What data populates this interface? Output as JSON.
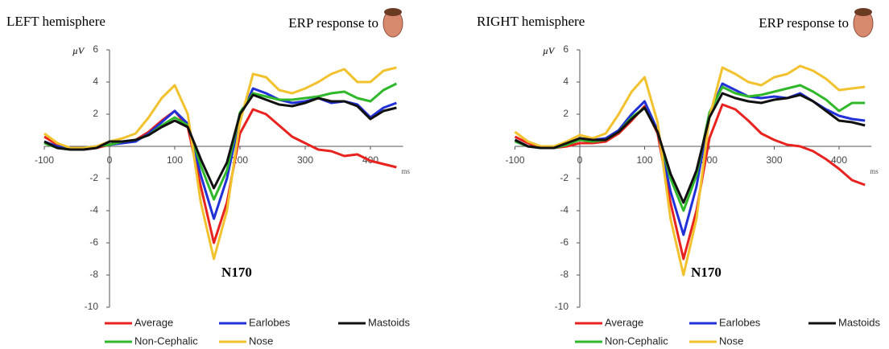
{
  "chart_data": [
    {
      "type": "line",
      "title": "LEFT hemisphere",
      "subtitle": "ERP response to",
      "y_label": "µV",
      "x_label": "ms",
      "annotation": "N170",
      "x": [
        -100,
        -80,
        -60,
        -40,
        -20,
        0,
        20,
        40,
        60,
        80,
        100,
        120,
        140,
        160,
        180,
        200,
        220,
        240,
        260,
        280,
        300,
        320,
        340,
        360,
        380,
        400,
        420,
        440
      ],
      "xlim": [
        -100,
        450
      ],
      "ylim": [
        -10,
        6
      ],
      "xticks": [
        -100,
        0,
        100,
        200,
        300,
        400
      ],
      "yticks": [
        -10,
        -8,
        -6,
        -4,
        -2,
        2,
        4,
        6
      ],
      "series": [
        {
          "name": "Average",
          "color": "#e8231f",
          "values": [
            0.6,
            0.1,
            -0.2,
            -0.2,
            -0.1,
            0.1,
            0.3,
            0.4,
            0.9,
            1.6,
            2.2,
            1.2,
            -2.5,
            -6.0,
            -3.5,
            0.8,
            2.3,
            2.0,
            1.3,
            0.6,
            0.2,
            -0.2,
            -0.3,
            -0.6,
            -0.5,
            -0.9,
            -1.1,
            -1.3
          ]
        },
        {
          "name": "Earlobes",
          "color": "#2230d8",
          "values": [
            0.3,
            0,
            -0.1,
            -0.1,
            0,
            0.1,
            0.2,
            0.3,
            0.8,
            1.5,
            2.2,
            1.4,
            -1.8,
            -4.5,
            -2.0,
            1.8,
            3.6,
            3.3,
            2.9,
            2.7,
            2.8,
            3.0,
            2.7,
            2.8,
            2.6,
            1.8,
            2.4,
            2.7
          ]
        },
        {
          "name": "Mastoids",
          "color": "#111111",
          "values": [
            0.3,
            -0.1,
            -0.2,
            -0.2,
            -0.1,
            0.3,
            0.3,
            0.4,
            0.7,
            1.2,
            1.6,
            1.2,
            -0.8,
            -2.6,
            -1.0,
            2.0,
            3.2,
            2.9,
            2.6,
            2.5,
            2.7,
            3.0,
            2.8,
            2.8,
            2.5,
            1.7,
            2.2,
            2.4
          ]
        },
        {
          "name": "Non-Cephalic",
          "color": "#2fb82a",
          "values": [
            0.2,
            -0.1,
            -0.2,
            -0.1,
            0,
            0.1,
            0.3,
            0.4,
            0.7,
            1.3,
            1.8,
            1.3,
            -1.2,
            -3.3,
            -1.5,
            2.1,
            3.3,
            3.1,
            2.9,
            2.9,
            3.0,
            3.1,
            3.3,
            3.4,
            3.0,
            2.8,
            3.5,
            3.9
          ]
        },
        {
          "name": "Nose",
          "color": "#f2c22e",
          "values": [
            0.8,
            0.2,
            -0.1,
            -0.1,
            0,
            0.3,
            0.5,
            0.8,
            1.8,
            3.0,
            3.8,
            2.0,
            -3.5,
            -7.0,
            -4.0,
            1.5,
            4.5,
            4.3,
            3.5,
            3.3,
            3.6,
            4.0,
            4.5,
            4.8,
            4.0,
            4.0,
            4.7,
            4.9
          ]
        }
      ]
    },
    {
      "type": "line",
      "title": "RIGHT hemisphere",
      "subtitle": "ERP response to",
      "y_label": "µV",
      "x_label": "ms",
      "annotation": "N170",
      "x": [
        -100,
        -80,
        -60,
        -40,
        -20,
        0,
        20,
        40,
        60,
        80,
        100,
        120,
        140,
        160,
        180,
        200,
        220,
        240,
        260,
        280,
        300,
        320,
        340,
        360,
        380,
        400,
        420,
        440
      ],
      "xlim": [
        -100,
        450
      ],
      "ylim": [
        -10,
        6
      ],
      "xticks": [
        -100,
        0,
        100,
        200,
        300,
        400
      ],
      "yticks": [
        -10,
        -8,
        -6,
        -4,
        -2,
        2,
        4,
        6
      ],
      "series": [
        {
          "name": "Average",
          "color": "#e8231f",
          "values": [
            0.6,
            0.2,
            -0.1,
            -0.1,
            0,
            0.2,
            0.2,
            0.3,
            0.8,
            1.6,
            2.5,
            0.8,
            -3.5,
            -7.0,
            -4.0,
            0.5,
            2.6,
            2.3,
            1.6,
            0.8,
            0.4,
            0.1,
            0,
            -0.3,
            -0.8,
            -1.4,
            -2.1,
            -2.4
          ]
        },
        {
          "name": "Earlobes",
          "color": "#2230d8",
          "values": [
            0.4,
            0,
            -0.1,
            -0.1,
            0.1,
            0.5,
            0.4,
            0.5,
            1.0,
            2.0,
            2.8,
            1.0,
            -2.8,
            -5.5,
            -2.5,
            2.0,
            3.9,
            3.5,
            3.1,
            3.0,
            3.1,
            3.0,
            3.3,
            2.8,
            2.3,
            1.9,
            1.7,
            1.6
          ]
        },
        {
          "name": "Mastoids",
          "color": "#111111",
          "values": [
            0.4,
            0,
            -0.1,
            -0.1,
            0.2,
            0.5,
            0.4,
            0.4,
            0.9,
            1.7,
            2.4,
            0.9,
            -1.7,
            -3.5,
            -1.5,
            1.8,
            3.3,
            3.0,
            2.8,
            2.7,
            2.9,
            3.0,
            3.2,
            2.8,
            2.2,
            1.6,
            1.5,
            1.3
          ]
        },
        {
          "name": "Non-Cephalic",
          "color": "#2fb82a",
          "values": [
            0.3,
            0,
            -0.1,
            -0.1,
            0.1,
            0.4,
            0.3,
            0.4,
            0.9,
            1.8,
            2.4,
            0.9,
            -2.0,
            -4.0,
            -1.8,
            2.1,
            3.7,
            3.3,
            3.1,
            3.2,
            3.4,
            3.6,
            3.8,
            3.4,
            2.9,
            2.2,
            2.7,
            2.7
          ]
        },
        {
          "name": "Nose",
          "color": "#f2c22e",
          "values": [
            0.9,
            0.3,
            0,
            0,
            0.3,
            0.7,
            0.5,
            0.8,
            2.0,
            3.4,
            4.3,
            1.5,
            -4.5,
            -8.0,
            -4.5,
            1.8,
            4.9,
            4.5,
            4.0,
            3.8,
            4.3,
            4.5,
            5.0,
            4.7,
            4.2,
            3.5,
            3.6,
            3.7
          ]
        }
      ]
    }
  ]
}
